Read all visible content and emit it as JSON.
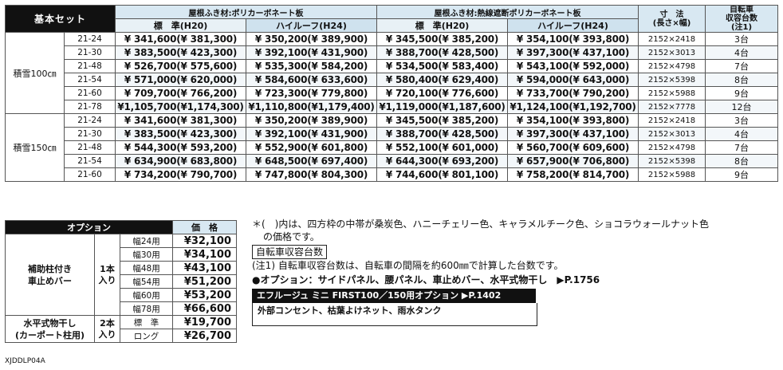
{
  "main_table": {
    "header": {
      "basic_set": "基本セット",
      "group1": "屋根ふき材:ポリカーボネート板",
      "group2": "屋根ふき材:熱線遮断ポリカーボネート板",
      "dim": "寸　法\n(長さ×幅)",
      "bikes": "自転車\n収容台数\n(注1)",
      "std": "標　準(H20)",
      "hi": "ハイルーフ(H24)"
    },
    "groups": [
      {
        "snow": "積雪100㎝",
        "rows": [
          {
            "model": "21-24",
            "p1": "¥ 341,600(¥ 381,300)",
            "p2": "¥ 350,200(¥ 389,900)",
            "p3": "¥ 345,500(¥ 385,200)",
            "p4": "¥ 354,100(¥ 393,800)",
            "dim": "2152×2418",
            "bikes": "3台"
          },
          {
            "model": "21-30",
            "p1": "¥ 383,500(¥ 423,300)",
            "p2": "¥ 392,100(¥ 431,900)",
            "p3": "¥ 388,700(¥ 428,500)",
            "p4": "¥ 397,300(¥ 437,100)",
            "dim": "2152×3013",
            "bikes": "4台"
          },
          {
            "model": "21-48",
            "p1": "¥ 526,700(¥ 575,600)",
            "p2": "¥ 535,300(¥ 584,200)",
            "p3": "¥ 534,500(¥ 583,400)",
            "p4": "¥ 543,100(¥ 592,000)",
            "dim": "2152×4798",
            "bikes": "7台"
          },
          {
            "model": "21-54",
            "p1": "¥ 571,000(¥ 620,000)",
            "p2": "¥ 584,600(¥ 633,600)",
            "p3": "¥ 580,400(¥ 629,400)",
            "p4": "¥ 594,000(¥ 643,000)",
            "dim": "2152×5398",
            "bikes": "8台"
          },
          {
            "model": "21-60",
            "p1": "¥ 709,700(¥ 766,200)",
            "p2": "¥ 723,300(¥ 779,800)",
            "p3": "¥ 720,100(¥ 776,600)",
            "p4": "¥ 733,700(¥ 790,200)",
            "dim": "2152×5988",
            "bikes": "9台"
          },
          {
            "model": "21-78",
            "p1": "¥1,105,700(¥1,174,300)",
            "p2": "¥1,110,800(¥1,179,400)",
            "p3": "¥1,119,000(¥1,187,600)",
            "p4": "¥1,124,100(¥1,192,700)",
            "dim": "2152×7778",
            "bikes": "12台"
          }
        ]
      },
      {
        "snow": "積雪150㎝",
        "rows": [
          {
            "model": "21-24",
            "p1": "¥ 341,600(¥ 381,300)",
            "p2": "¥ 350,200(¥ 389,900)",
            "p3": "¥ 345,500(¥ 385,200)",
            "p4": "¥ 354,100(¥ 393,800)",
            "dim": "2152×2418",
            "bikes": "3台"
          },
          {
            "model": "21-30",
            "p1": "¥ 383,500(¥ 423,300)",
            "p2": "¥ 392,100(¥ 431,900)",
            "p3": "¥ 388,700(¥ 428,500)",
            "p4": "¥ 397,300(¥ 437,100)",
            "dim": "2152×3013",
            "bikes": "4台"
          },
          {
            "model": "21-48",
            "p1": "¥ 544,300(¥ 593,200)",
            "p2": "¥ 552,900(¥ 601,800)",
            "p3": "¥ 552,100(¥ 601,000)",
            "p4": "¥ 560,700(¥ 609,600)",
            "dim": "2152×4798",
            "bikes": "7台"
          },
          {
            "model": "21-54",
            "p1": "¥ 634,900(¥ 683,800)",
            "p2": "¥ 648,500(¥ 697,400)",
            "p3": "¥ 644,300(¥ 693,200)",
            "p4": "¥ 657,900(¥ 706,800)",
            "dim": "2152×5398",
            "bikes": "8台"
          },
          {
            "model": "21-60",
            "p1": "¥ 734,200(¥ 790,700)",
            "p2": "¥ 747,800(¥ 804,300)",
            "p3": "¥ 744,600(¥ 801,100)",
            "p4": "¥ 758,200(¥ 814,700)",
            "dim": "2152×5988",
            "bikes": "9台"
          }
        ]
      }
    ]
  },
  "option_table": {
    "title": "オプション",
    "price_header": "価　格",
    "item1": {
      "label": "補助柱付き\n車止めバー",
      "qty": "1本\n入り",
      "rows": [
        {
          "size": "幅24用",
          "price": "¥32,100"
        },
        {
          "size": "幅30用",
          "price": "¥34,100"
        },
        {
          "size": "幅48用",
          "price": "¥43,100"
        },
        {
          "size": "幅54用",
          "price": "¥51,200"
        },
        {
          "size": "幅60用",
          "price": "¥53,200"
        },
        {
          "size": "幅78用",
          "price": "¥66,600"
        }
      ]
    },
    "item2": {
      "label": "水平式物干し\n(カーポート柱用)",
      "qty": "2本\n入り",
      "rows": [
        {
          "size": "標　準",
          "price": "¥19,700"
        },
        {
          "size": "ロング",
          "price": "¥26,700"
        }
      ]
    },
    "code": "XJDDLP04A"
  },
  "notes": {
    "color_note_1": "＊(　)内は、四方枠の中帯が桑炭色、ハニーチェリー色、キャラメルチーク色、ショコラウォールナット色",
    "color_note_2": "の価格です。",
    "bike_title": "自転車収容台数",
    "bike_note": "(注1) 自転車収容台数は、自転車の間隔を約600㎜で計算した台数です。",
    "option_line": "●オプション：サイドパネル、腰パネル、車止めバー、水平式物干し　▶P.1756",
    "first_bar": "エフルージュ ミニ FIRST100／150用オプション ▶P.1402",
    "first_items": "外部コンセント、枯葉よけネット、雨水タンク"
  }
}
